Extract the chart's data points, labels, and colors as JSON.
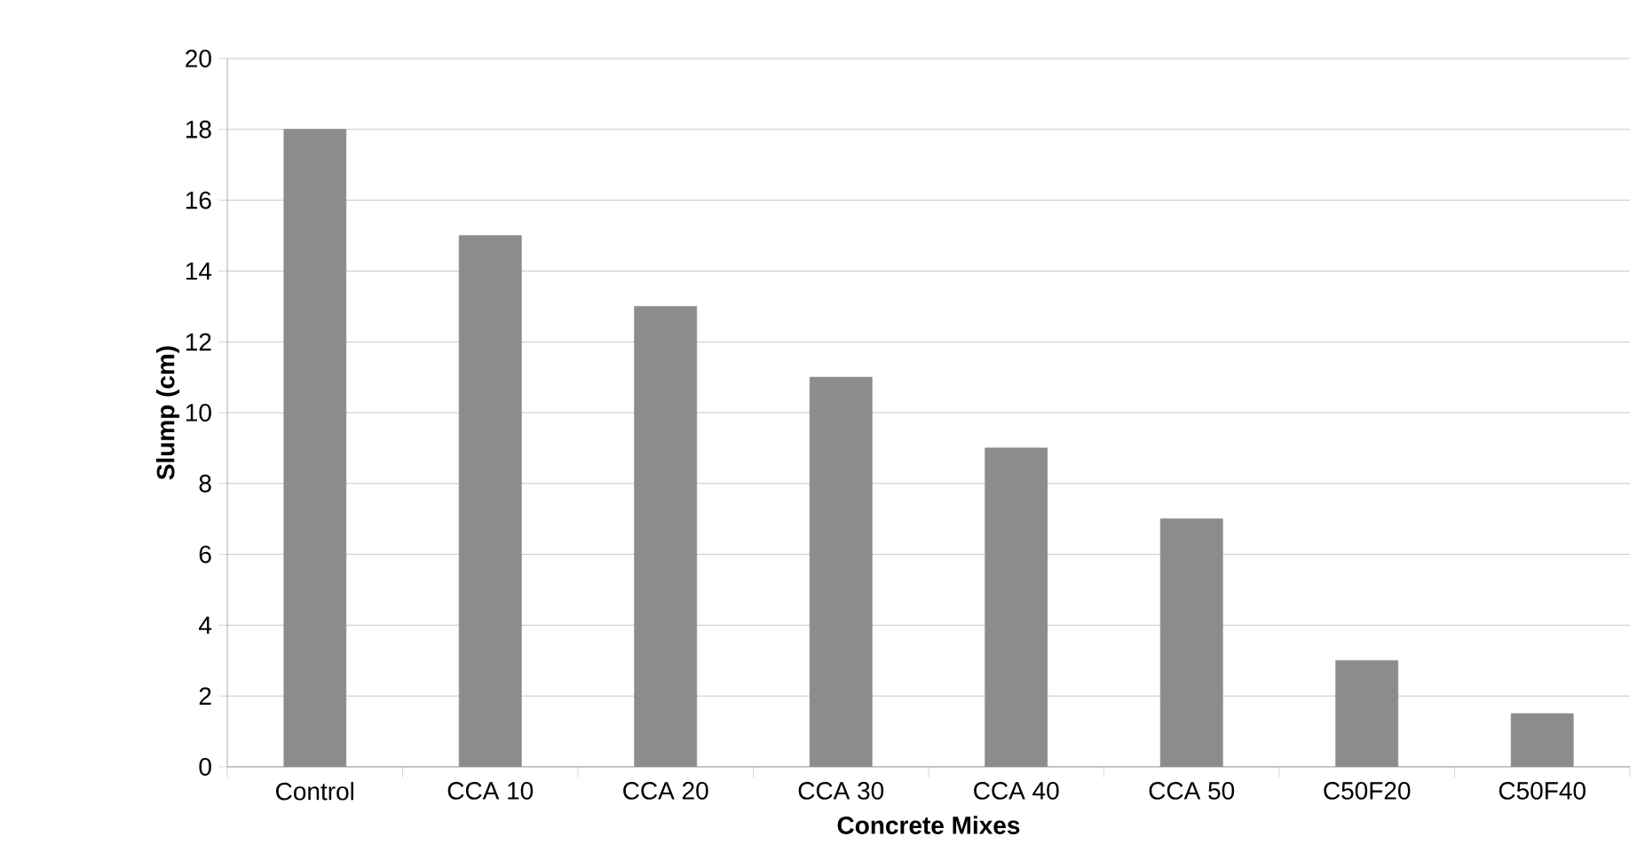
{
  "chart_data": {
    "type": "bar",
    "xlabel": "Concrete Mixes",
    "ylabel": "Slump (cm)",
    "categories": [
      "Control",
      "CCA 10",
      "CCA 20",
      "CCA 30",
      "CCA 40",
      "CCA 50",
      "C50F20",
      "C50F40"
    ],
    "values": [
      18,
      15,
      13,
      11,
      9,
      7,
      3,
      1.5
    ],
    "color": "#8c8c8c",
    "ylim": [
      0,
      20
    ],
    "yticks": [
      0,
      2,
      4,
      6,
      8,
      10,
      12,
      14,
      16,
      18,
      20
    ],
    "grid": "y"
  }
}
